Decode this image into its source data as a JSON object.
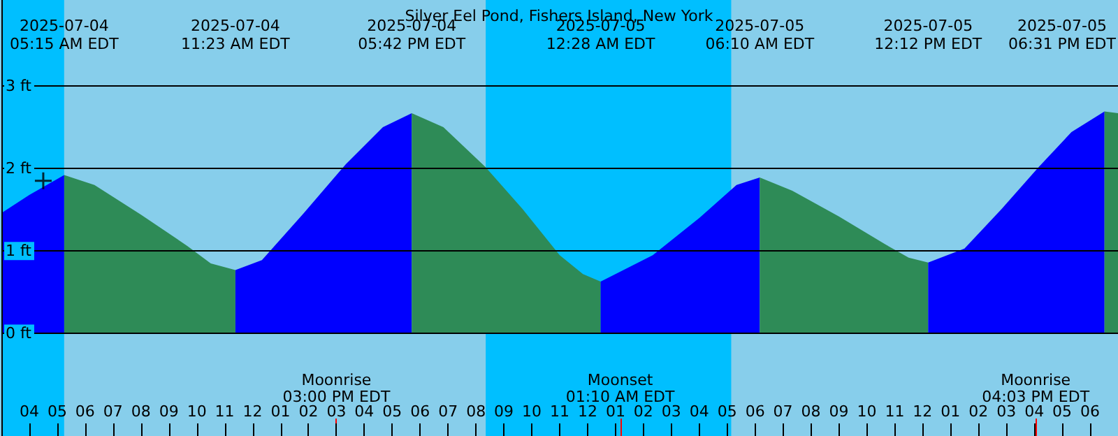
{
  "chart_data": {
    "type": "area",
    "title": "Silver Eel Pond, Fishers Island, New York",
    "xlim": [
      "2025-07-04T03:00",
      "2025-07-05T19:00"
    ],
    "ylim": [
      -1.24,
      4.04
    ],
    "xticks": [
      {
        "value": "2025-07-04T04:00",
        "label": "04"
      },
      {
        "value": "2025-07-04T05:00",
        "label": "05"
      },
      {
        "value": "2025-07-04T06:00",
        "label": "06"
      },
      {
        "value": "2025-07-04T07:00",
        "label": "07"
      },
      {
        "value": "2025-07-04T08:00",
        "label": "08"
      },
      {
        "value": "2025-07-04T09:00",
        "label": "09"
      },
      {
        "value": "2025-07-04T10:00",
        "label": "10"
      },
      {
        "value": "2025-07-04T11:00",
        "label": "11"
      },
      {
        "value": "2025-07-04T12:00",
        "label": "12"
      },
      {
        "value": "2025-07-04T13:00",
        "label": "01"
      },
      {
        "value": "2025-07-04T14:00",
        "label": "02"
      },
      {
        "value": "2025-07-04T15:00",
        "label": "03"
      },
      {
        "value": "2025-07-04T16:00",
        "label": "04"
      },
      {
        "value": "2025-07-04T17:00",
        "label": "05"
      },
      {
        "value": "2025-07-04T18:00",
        "label": "06"
      },
      {
        "value": "2025-07-04T19:00",
        "label": "07"
      },
      {
        "value": "2025-07-04T20:00",
        "label": "08"
      },
      {
        "value": "2025-07-04T21:00",
        "label": "09"
      },
      {
        "value": "2025-07-04T22:00",
        "label": "10"
      },
      {
        "value": "2025-07-04T23:00",
        "label": "11"
      },
      {
        "value": "2025-07-05T00:00",
        "label": "12"
      },
      {
        "value": "2025-07-05T01:00",
        "label": "01"
      },
      {
        "value": "2025-07-05T02:00",
        "label": "02"
      },
      {
        "value": "2025-07-05T03:00",
        "label": "03"
      },
      {
        "value": "2025-07-05T04:00",
        "label": "04"
      },
      {
        "value": "2025-07-05T05:00",
        "label": "05"
      },
      {
        "value": "2025-07-05T06:00",
        "label": "06"
      },
      {
        "value": "2025-07-05T07:00",
        "label": "07"
      },
      {
        "value": "2025-07-05T08:00",
        "label": "08"
      },
      {
        "value": "2025-07-05T09:00",
        "label": "09"
      },
      {
        "value": "2025-07-05T10:00",
        "label": "10"
      },
      {
        "value": "2025-07-05T11:00",
        "label": "11"
      },
      {
        "value": "2025-07-05T12:00",
        "label": "12"
      },
      {
        "value": "2025-07-05T13:00",
        "label": "01"
      },
      {
        "value": "2025-07-05T14:00",
        "label": "02"
      },
      {
        "value": "2025-07-05T15:00",
        "label": "03"
      },
      {
        "value": "2025-07-05T16:00",
        "label": "04"
      },
      {
        "value": "2025-07-05T17:00",
        "label": "05"
      },
      {
        "value": "2025-07-05T18:00",
        "label": "06"
      }
    ],
    "yticks": [
      {
        "value": 0,
        "label": "0 ft"
      },
      {
        "value": 1,
        "label": "1 ft"
      },
      {
        "value": 2,
        "label": "2 ft"
      },
      {
        "value": 3,
        "label": "3 ft"
      }
    ],
    "grid": "y",
    "marker": "none",
    "series": [
      {
        "color": "#0000ff",
        "x": [
          "2025-07-04T03:00",
          "2025-07-04T04:00",
          "2025-07-04T05:15"
        ],
        "values": [
          1.46,
          1.68,
          1.92
        ]
      },
      {
        "color": "#2e8b57",
        "x": [
          "2025-07-04T05:15",
          "2025-07-04T06:20",
          "2025-07-04T08:00",
          "2025-07-04T09:40",
          "2025-07-04T10:30",
          "2025-07-04T11:23"
        ],
        "values": [
          1.92,
          1.8,
          1.44,
          1.06,
          0.85,
          0.77
        ]
      },
      {
        "color": "#0000ff",
        "x": [
          "2025-07-04T11:23",
          "2025-07-04T12:20",
          "2025-07-04T13:50",
          "2025-07-04T15:20",
          "2025-07-04T16:40",
          "2025-07-04T17:42"
        ],
        "values": [
          0.77,
          0.89,
          1.46,
          2.05,
          2.5,
          2.67
        ]
      },
      {
        "color": "#2e8b57",
        "x": [
          "2025-07-04T17:42",
          "2025-07-04T18:50",
          "2025-07-04T20:20",
          "2025-07-04T21:40",
          "2025-07-04T23:00",
          "2025-07-04T23:50",
          "2025-07-05T00:28"
        ],
        "values": [
          2.67,
          2.5,
          2.02,
          1.51,
          0.95,
          0.72,
          0.63
        ]
      },
      {
        "color": "#0000ff",
        "x": [
          "2025-07-05T00:28",
          "2025-07-05T02:20",
          "2025-07-05T04:00",
          "2025-07-05T05:20",
          "2025-07-05T06:10"
        ],
        "values": [
          0.63,
          0.95,
          1.4,
          1.8,
          1.89
        ]
      },
      {
        "color": "#2e8b57",
        "x": [
          "2025-07-05T06:10",
          "2025-07-05T07:20",
          "2025-07-05T09:00",
          "2025-07-05T10:40",
          "2025-07-05T11:30",
          "2025-07-05T12:12"
        ],
        "values": [
          1.89,
          1.73,
          1.42,
          1.08,
          0.92,
          0.86
        ]
      },
      {
        "color": "#0000ff",
        "x": [
          "2025-07-05T12:12",
          "2025-07-05T13:30",
          "2025-07-05T14:50",
          "2025-07-05T16:10",
          "2025-07-05T17:20",
          "2025-07-05T18:31"
        ],
        "values": [
          0.86,
          1.03,
          1.51,
          2.02,
          2.44,
          2.69
        ]
      },
      {
        "color": "#2e8b57",
        "x": [
          "2025-07-05T18:31",
          "2025-07-05T19:00"
        ],
        "values": [
          2.69,
          2.67
        ]
      },
      {
        "type": "scatter",
        "marker": "cross",
        "color": "#000000",
        "x": [
          "2025-07-04T04:30"
        ],
        "values": [
          1.85
        ]
      }
    ],
    "bands": [
      {
        "axis": "x",
        "from": "2025-07-04T03:00",
        "to": "2025-07-04T05:15",
        "color": "#00bfff"
      },
      {
        "axis": "x",
        "from": "2025-07-04T05:15",
        "to": "2025-07-04T20:21",
        "color": "#87ceeb"
      },
      {
        "axis": "x",
        "from": "2025-07-04T20:21",
        "to": "2025-07-05T05:09",
        "color": "#00bfff"
      },
      {
        "axis": "x",
        "from": "2025-07-05T05:09",
        "to": "2025-07-05T19:00",
        "color": "#87ceeb"
      }
    ],
    "ref_lines": [
      {
        "axis": "x",
        "value": "2025-07-04T15:00",
        "label": "Moonrise\n03:00 PM EDT",
        "color": "#ff0000"
      },
      {
        "axis": "x",
        "value": "2025-07-05T01:10",
        "label": "Moonset\n01:10 AM EDT",
        "color": "#ff0000"
      },
      {
        "axis": "x",
        "value": "2025-07-05T16:03",
        "label": "Moonrise\n04:03 PM EDT",
        "color": "#ff0000"
      }
    ],
    "annotations": [
      "2025-07-04\n05:15 AM EDT",
      "2025-07-04\n11:23 AM EDT",
      "2025-07-04\n05:42 PM EDT",
      "2025-07-05\n12:28 AM EDT",
      "2025-07-05\n06:10 AM EDT",
      "2025-07-05\n12:12 PM EDT",
      "2025-07-05\n06:31 PM EDT"
    ]
  }
}
